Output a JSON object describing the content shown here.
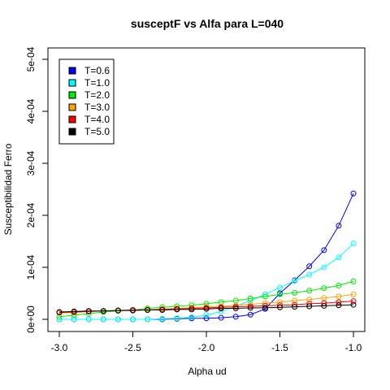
{
  "chart_data": {
    "type": "line",
    "title": "susceptF vs Alfa para L=040",
    "xlabel": "Alpha ud",
    "ylabel": "Susceptibilidad Ferro",
    "xlim": [
      -3.0,
      -1.0
    ],
    "ylim": [
      0,
      0.0005
    ],
    "x_ticks": [
      -3.0,
      -2.5,
      -2.0,
      -1.5,
      -1.0
    ],
    "x_tick_labels": [
      "-3.0",
      "-2.5",
      "-2.0",
      "-1.5",
      "-1.0"
    ],
    "y_ticks": [
      0,
      0.0001,
      0.0002,
      0.0003,
      0.0004,
      0.0005
    ],
    "y_tick_labels": [
      "0e+00",
      "1e-04",
      "2e-04",
      "3e-04",
      "4e-04",
      "5e-04"
    ],
    "grid": false,
    "legend_position": "top-left",
    "x": [
      -3.0,
      -2.9,
      -2.8,
      -2.7,
      -2.6,
      -2.5,
      -2.4,
      -2.3,
      -2.2,
      -2.1,
      -2.0,
      -1.9,
      -1.8,
      -1.7,
      -1.6,
      -1.5,
      -1.4,
      -1.3,
      -1.2,
      -1.1,
      -1.0
    ],
    "series": [
      {
        "name": "T=0.6",
        "color": "#0000ff",
        "values": [
          0.0,
          0.0,
          0.0,
          0.0,
          0.0,
          0.0,
          0.0,
          0.0,
          1e-06,
          2e-06,
          2e-06,
          3e-06,
          5e-06,
          9e-06,
          2e-05,
          5e-05,
          7.5e-05,
          0.000102,
          0.000133,
          0.00018,
          0.000242
        ]
      },
      {
        "name": "T=1.0",
        "color": "#00ffff",
        "values": [
          0.0,
          0.0,
          0.0,
          0.0,
          0.0,
          0.0,
          0.0,
          1e-06,
          2e-06,
          4e-06,
          8e-06,
          1.5e-05,
          2.5e-05,
          3.6e-05,
          4.8e-05,
          6.1e-05,
          7.4e-05,
          8.6e-05,
          0.0001,
          0.000119,
          0.000146
        ]
      },
      {
        "name": "T=2.0",
        "color": "#00ee00",
        "values": [
          5e-06,
          8e-06,
          1.1e-05,
          1.4e-05,
          1.6e-05,
          1.8e-05,
          2.1e-05,
          2.3e-05,
          2.5e-05,
          2.7e-05,
          3e-05,
          3.3e-05,
          3.6e-05,
          4e-05,
          4.4e-05,
          4.8e-05,
          5.1e-05,
          5.5e-05,
          6e-05,
          6.5e-05,
          7.3e-05
        ]
      },
      {
        "name": "T=3.0",
        "color": "#ffa500",
        "values": [
          1.2e-05,
          1.3e-05,
          1.5e-05,
          1.6e-05,
          1.7e-05,
          1.8e-05,
          1.9e-05,
          2e-05,
          2.1e-05,
          2.2e-05,
          2.4e-05,
          2.5e-05,
          2.7e-05,
          2.9e-05,
          3.1e-05,
          3.3e-05,
          3.6e-05,
          3.8e-05,
          4.1e-05,
          4.4e-05,
          4.8e-05
        ]
      },
      {
        "name": "T=4.0",
        "color": "#ff0000",
        "values": [
          1.3e-05,
          1.4e-05,
          1.5e-05,
          1.6e-05,
          1.7e-05,
          1.8e-05,
          1.8e-05,
          1.9e-05,
          2e-05,
          2.1e-05,
          2.2e-05,
          2.3e-05,
          2.4e-05,
          2.5e-05,
          2.6e-05,
          2.7e-05,
          2.8e-05,
          3e-05,
          3.1e-05,
          3.3e-05,
          3.5e-05
        ]
      },
      {
        "name": "T=5.0",
        "color": "#000000",
        "values": [
          1.4e-05,
          1.5e-05,
          1.6e-05,
          1.6e-05,
          1.7e-05,
          1.7e-05,
          1.8e-05,
          1.8e-05,
          1.9e-05,
          1.9e-05,
          2e-05,
          2.1e-05,
          2.1e-05,
          2.2e-05,
          2.2e-05,
          2.3e-05,
          2.4e-05,
          2.5e-05,
          2.6e-05,
          2.7e-05,
          2.8e-05
        ]
      }
    ]
  }
}
